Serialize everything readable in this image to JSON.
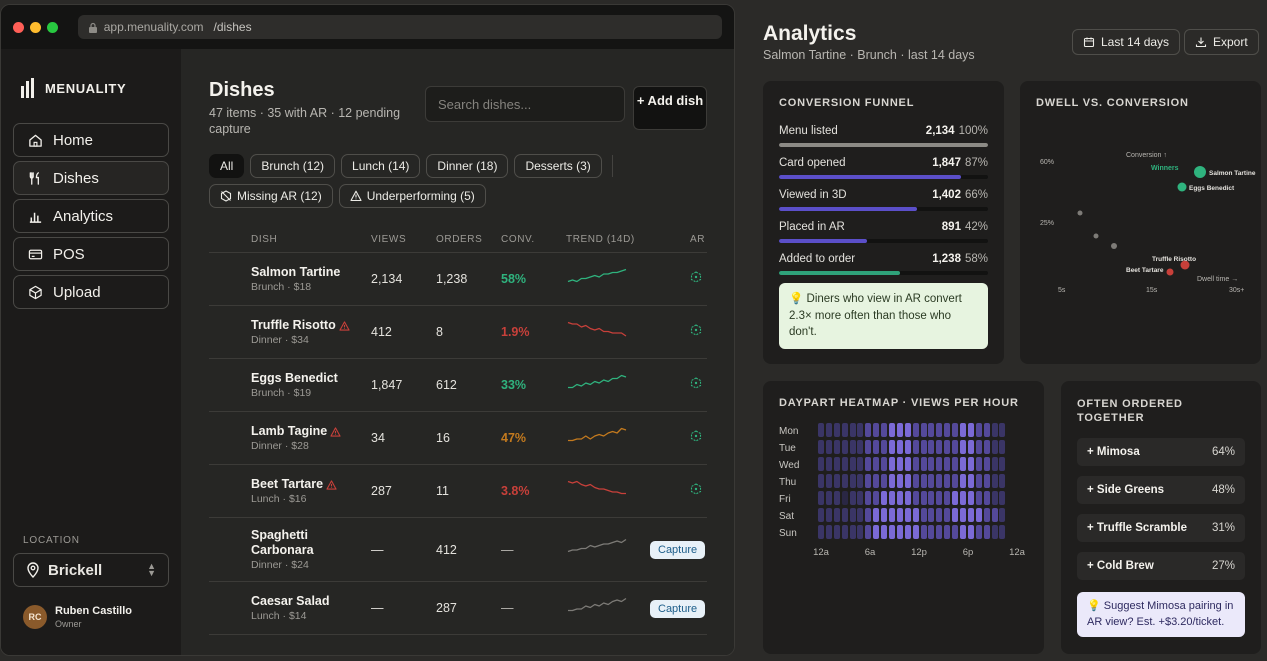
{
  "browser": {
    "domain": "app.menuality.com",
    "path": "/dishes"
  },
  "brand": {
    "name": "MENUALITY"
  },
  "nav": [
    {
      "key": "home",
      "label": "Home",
      "icon": "home-icon"
    },
    {
      "key": "dishes",
      "label": "Dishes",
      "icon": "utensils-icon"
    },
    {
      "key": "analytics",
      "label": "Analytics",
      "icon": "bar-chart-icon"
    },
    {
      "key": "pos",
      "label": "POS",
      "icon": "card-icon"
    },
    {
      "key": "upload",
      "label": "Upload",
      "icon": "cube-icon"
    }
  ],
  "location": {
    "label": "LOCATION",
    "value": "Brickell"
  },
  "user": {
    "initials": "RC",
    "name": "Ruben Castillo",
    "role": "Owner"
  },
  "dishes": {
    "title": "Dishes",
    "subtitle": "47 items · 35 with AR · 12 pending capture",
    "search_placeholder": "Search dishes...",
    "add_label": "+ Add dish",
    "filters": [
      "All",
      "Brunch (12)",
      "Lunch (14)",
      "Dinner (18)",
      "Desserts (3)"
    ],
    "filters2": [
      "Missing AR (12)",
      "Underperforming (5)"
    ],
    "columns": [
      "DISH",
      "VIEWS",
      "ORDERS",
      "CONV.",
      "TREND (14D)",
      "AR"
    ],
    "rows": [
      {
        "name": "Salmon Tartine",
        "meta": "Brunch · $18",
        "views": "2,134",
        "orders": "1,238",
        "conv": "58%",
        "status": "good",
        "warn": false,
        "ar": "cube",
        "trend": [
          3,
          4,
          3,
          5,
          5,
          6,
          7,
          6,
          8,
          8,
          9,
          9,
          10,
          11
        ]
      },
      {
        "name": "Truffle Risotto",
        "meta": "Dinner · $34",
        "views": "412",
        "orders": "8",
        "conv": "1.9%",
        "status": "bad",
        "warn": true,
        "ar": "cube",
        "trend": [
          11,
          10,
          10,
          8,
          9,
          7,
          6,
          7,
          5,
          5,
          4,
          4,
          4,
          2
        ]
      },
      {
        "name": "Eggs Benedict",
        "meta": "Brunch · $19",
        "views": "1,847",
        "orders": "612",
        "conv": "33%",
        "status": "good",
        "warn": false,
        "ar": "cube",
        "trend": [
          3,
          3,
          5,
          4,
          6,
          5,
          7,
          6,
          8,
          7,
          9,
          9,
          11,
          10
        ]
      },
      {
        "name": "Lamb Tagine",
        "meta": "Dinner · $28",
        "views": "34",
        "orders": "16",
        "conv": "47%",
        "status": "mid",
        "warn": true,
        "ar": "cube",
        "trend": [
          3,
          3,
          4,
          4,
          6,
          4,
          6,
          7,
          6,
          8,
          9,
          8,
          11,
          10
        ]
      },
      {
        "name": "Beet Tartare",
        "meta": "Lunch · $16",
        "views": "287",
        "orders": "11",
        "conv": "3.8%",
        "status": "bad",
        "warn": true,
        "ar": "cube",
        "trend": [
          11,
          10,
          11,
          9,
          8,
          9,
          7,
          6,
          6,
          5,
          4,
          4,
          3,
          3
        ]
      },
      {
        "name": "Spaghetti Carbonara",
        "meta": "Dinner · $24",
        "views": "—",
        "orders": "412",
        "conv": "—",
        "status": "none",
        "warn": false,
        "ar": "capture",
        "trend": [
          3,
          4,
          4,
          5,
          5,
          7,
          6,
          7,
          8,
          8,
          9,
          10,
          9,
          11
        ]
      },
      {
        "name": "Caesar Salad",
        "meta": "Lunch · $14",
        "views": "—",
        "orders": "287",
        "conv": "—",
        "status": "none",
        "warn": false,
        "ar": "capture",
        "trend": [
          3,
          3,
          4,
          4,
          6,
          5,
          7,
          6,
          8,
          7,
          9,
          10,
          9,
          11
        ]
      }
    ],
    "capture_label": "Capture"
  },
  "analytics": {
    "title": "Analytics",
    "subtitle": "Salmon Tartine · Brunch · last 14 days",
    "range_label": "Last 14 days",
    "export_label": "Export",
    "funnel": {
      "title": "CONVERSION FUNNEL",
      "steps": [
        {
          "label": "Menu listed",
          "value": "2,134",
          "pct": "100%",
          "fraction": 1.0,
          "color": "#8c8a85"
        },
        {
          "label": "Card opened",
          "value": "1,847",
          "pct": "87%",
          "fraction": 0.87,
          "color": "#5b4fc9"
        },
        {
          "label": "Viewed in 3D",
          "value": "1,402",
          "pct": "66%",
          "fraction": 0.66,
          "color": "#5b4fc9"
        },
        {
          "label": "Placed in AR",
          "value": "891",
          "pct": "42%",
          "fraction": 0.42,
          "color": "#5b4fc9"
        },
        {
          "label": "Added to order",
          "value": "1,238",
          "pct": "58%",
          "fraction": 0.58,
          "color": "#2fa27a"
        }
      ],
      "insight": "Diners who view in AR convert 2.3× more often than those who don't."
    },
    "dwell": {
      "title": "DWELL VS. CONVERSION",
      "y_ticks": [
        "60%",
        "25%"
      ],
      "x_ticks": [
        "5s",
        "15s",
        "30s+"
      ],
      "y_axis_label": "Conversion ↑",
      "x_axis_label": "Dwell time →",
      "winners_label": "Winners",
      "points": [
        {
          "label": "Salmon Tartine",
          "kind": "winner"
        },
        {
          "label": "Eggs Benedict",
          "kind": "winner"
        },
        {
          "label": "Truffle Risotto",
          "kind": "loser"
        },
        {
          "label": "Beet Tartare",
          "kind": "loser"
        }
      ]
    },
    "heatmap": {
      "title": "DAYPART HEATMAP · VIEWS PER HOUR",
      "days": [
        "Mon",
        "Tue",
        "Wed",
        "Thu",
        "Fri",
        "Sat",
        "Sun"
      ],
      "hours": [
        "12a",
        "6a",
        "12p",
        "6p",
        "12a"
      ],
      "levels": [
        [
          1,
          1,
          1,
          1,
          1,
          1,
          2,
          2,
          2,
          3,
          3,
          3,
          2,
          2,
          2,
          2,
          2,
          2,
          3,
          3,
          2,
          2,
          1,
          1
        ],
        [
          1,
          1,
          1,
          1,
          1,
          1,
          2,
          2,
          2,
          3,
          3,
          3,
          2,
          2,
          2,
          2,
          2,
          2,
          3,
          3,
          2,
          2,
          1,
          1
        ],
        [
          1,
          1,
          1,
          1,
          1,
          1,
          2,
          2,
          2,
          3,
          3,
          3,
          2,
          2,
          2,
          2,
          2,
          2,
          3,
          3,
          2,
          2,
          1,
          1
        ],
        [
          1,
          1,
          1,
          1,
          1,
          1,
          2,
          2,
          2,
          3,
          3,
          3,
          2,
          2,
          2,
          2,
          2,
          2,
          3,
          3,
          2,
          2,
          1,
          1
        ],
        [
          1,
          1,
          1,
          0,
          1,
          1,
          2,
          2,
          3,
          3,
          3,
          3,
          2,
          2,
          2,
          2,
          2,
          3,
          3,
          3,
          2,
          2,
          1,
          1
        ],
        [
          1,
          1,
          1,
          1,
          1,
          1,
          2,
          3,
          3,
          3,
          3,
          3,
          3,
          2,
          2,
          2,
          2,
          3,
          3,
          3,
          3,
          2,
          2,
          1
        ],
        [
          1,
          1,
          1,
          1,
          1,
          1,
          2,
          3,
          3,
          3,
          3,
          3,
          3,
          2,
          2,
          2,
          2,
          2,
          3,
          3,
          2,
          2,
          1,
          1
        ]
      ],
      "level_colors": [
        "#2a2744",
        "#3a3566",
        "#54499a",
        "#7b6ad6"
      ]
    },
    "often": {
      "title": "OFTEN ORDERED TOGETHER",
      "items": [
        {
          "label": "+ Mimosa",
          "pct": "64%"
        },
        {
          "label": "+ Side Greens",
          "pct": "48%"
        },
        {
          "label": "+ Truffle Scramble",
          "pct": "31%"
        },
        {
          "label": "+ Cold Brew",
          "pct": "27%"
        }
      ],
      "suggestion": "Suggest Mimosa pairing in AR view? Est. +$3.20/ticket."
    }
  },
  "colors": {
    "good": "#2fb37e",
    "bad": "#c8403a",
    "mid": "#c47a1e",
    "none": "#7d7b77",
    "accent": "#5b4fc9"
  }
}
